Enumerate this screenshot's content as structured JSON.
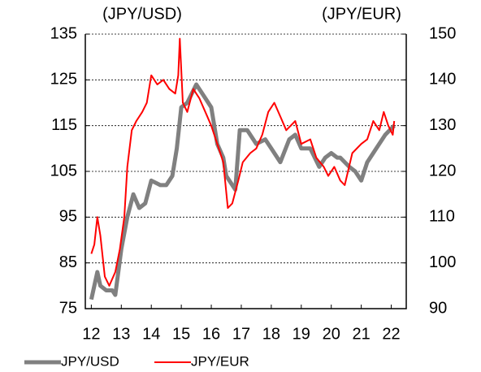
{
  "chart_data": {
    "type": "line",
    "y_label": "(JPY/USD)",
    "y2_label": "(JPY/EUR)",
    "xlim": [
      11.8,
      22.5
    ],
    "xticks": [
      12,
      13,
      14,
      15,
      16,
      17,
      18,
      19,
      20,
      21,
      22
    ],
    "ylim": [
      75,
      135
    ],
    "yticks": [
      75,
      85,
      95,
      105,
      115,
      125,
      135
    ],
    "y2lim": [
      90,
      150
    ],
    "y2ticks": [
      90,
      100,
      110,
      120,
      130,
      140,
      150
    ],
    "grid": true,
    "legend": "bottom",
    "series": [
      {
        "name": "JPY/USD",
        "color": "#808080",
        "x": [
          12.0,
          12.1,
          12.2,
          12.3,
          12.5,
          12.7,
          12.8,
          13.0,
          13.2,
          13.4,
          13.6,
          13.8,
          14.0,
          14.3,
          14.5,
          14.7,
          14.85,
          15.0,
          15.2,
          15.5,
          15.8,
          16.0,
          16.2,
          16.4,
          16.5,
          16.7,
          16.8,
          16.95,
          17.2,
          17.5,
          17.8,
          18.0,
          18.3,
          18.6,
          18.8,
          19.0,
          19.3,
          19.6,
          19.8,
          20.0,
          20.2,
          20.3,
          20.6,
          20.8,
          21.0,
          21.2,
          21.5,
          21.8,
          21.95,
          22.1
        ],
        "values": [
          77,
          80,
          83,
          80,
          79,
          79,
          78,
          88,
          95,
          100,
          97,
          98,
          103,
          102,
          102,
          104,
          110,
          119,
          120,
          124,
          121,
          119,
          111,
          108,
          104,
          102,
          101,
          114,
          114,
          111,
          112,
          110,
          107,
          112,
          113,
          110,
          110,
          106,
          108,
          109,
          108,
          108,
          106,
          105,
          103,
          107,
          110,
          113,
          114,
          115
        ]
      },
      {
        "name": "JPY/EUR",
        "color": "#ff0000",
        "axis": "y2",
        "x": [
          12.0,
          12.1,
          12.2,
          12.3,
          12.45,
          12.6,
          12.8,
          12.95,
          13.1,
          13.2,
          13.35,
          13.5,
          13.7,
          13.85,
          14.0,
          14.2,
          14.4,
          14.6,
          14.8,
          14.9,
          14.95,
          15.05,
          15.2,
          15.4,
          15.6,
          15.8,
          16.0,
          16.2,
          16.4,
          16.55,
          16.7,
          16.9,
          17.05,
          17.3,
          17.5,
          17.7,
          17.9,
          18.1,
          18.3,
          18.5,
          18.8,
          19.0,
          19.3,
          19.5,
          19.75,
          19.9,
          20.1,
          20.3,
          20.45,
          20.7,
          21.0,
          21.2,
          21.4,
          21.6,
          21.75,
          21.9,
          22.05,
          22.1
        ],
        "values": [
          102,
          104,
          110,
          106,
          97,
          95,
          98,
          103,
          110,
          121,
          129,
          131,
          133,
          135,
          141,
          139,
          140,
          138,
          137,
          141,
          149,
          135,
          133,
          138,
          136,
          133,
          130,
          126,
          122,
          112,
          113,
          118,
          122,
          124,
          125,
          128,
          133,
          135,
          132,
          129,
          131,
          126,
          127,
          123,
          121,
          119,
          121,
          118,
          117,
          124,
          126,
          127,
          131,
          129,
          133,
          130,
          128,
          131
        ]
      }
    ]
  }
}
